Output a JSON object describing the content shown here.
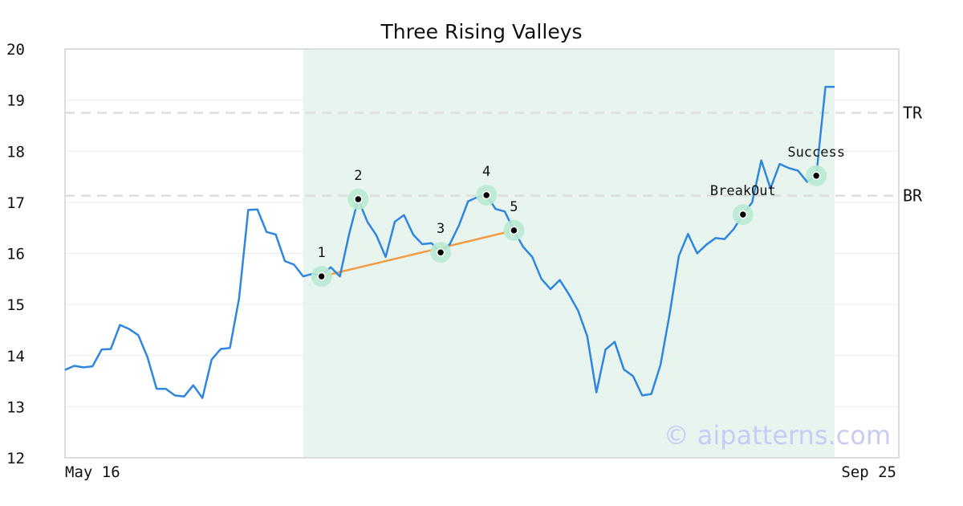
{
  "chart_data": {
    "type": "line",
    "title": "Three Rising Valleys",
    "xlabel": "",
    "ylabel": "",
    "ylim": [
      12,
      20
    ],
    "yticks": [
      12,
      13,
      14,
      15,
      16,
      17,
      18,
      19,
      20
    ],
    "x_start_label": "May 16",
    "x_end_label": "Sep 25",
    "grid": true,
    "colors": {
      "price": "#2e86de",
      "trendline": "#f39c45",
      "highlight": "#e8f5ef",
      "marker_halo": "#b9ead1",
      "ref_line": "#dddddd",
      "watermark": "#c9cbf7"
    },
    "series": [
      {
        "values": [
          13.72,
          13.8,
          13.77,
          13.79,
          14.12,
          14.13,
          14.6,
          14.52,
          14.4,
          13.97,
          13.35,
          13.35,
          13.22,
          13.2,
          13.42,
          13.17,
          13.92,
          14.13,
          14.15,
          15.12,
          16.85,
          16.86,
          16.42,
          16.37,
          15.85,
          15.78,
          15.55,
          15.6,
          15.55,
          15.73,
          15.55,
          16.37,
          17.06,
          16.62,
          16.35,
          15.93,
          16.62,
          16.75,
          16.37,
          16.18,
          16.2,
          16.02,
          16.18,
          16.55,
          17.02,
          17.1,
          17.14,
          16.87,
          16.82,
          16.45,
          16.13,
          15.93,
          15.5,
          15.3,
          15.48,
          15.2,
          14.88,
          14.38,
          13.28,
          14.12,
          14.27,
          13.73,
          13.6,
          13.22,
          13.25,
          13.82,
          14.82,
          15.95,
          16.38,
          16.0,
          16.17,
          16.3,
          16.28,
          16.48,
          16.76,
          17.0,
          17.82,
          17.27,
          17.75,
          17.67,
          17.62,
          17.4,
          17.52,
          19.26,
          19.26
        ]
      }
    ],
    "highlight_range": [
      26,
      84
    ],
    "reference_lines": [
      {
        "label": "TR",
        "value": 18.75
      },
      {
        "label": "BR",
        "value": 17.13
      }
    ],
    "points": [
      {
        "label": "1",
        "index": 28,
        "value": 15.55
      },
      {
        "label": "2",
        "index": 32,
        "value": 17.06
      },
      {
        "label": "3",
        "index": 41,
        "value": 16.02
      },
      {
        "label": "4",
        "index": 46,
        "value": 17.14
      },
      {
        "label": "5",
        "index": 49,
        "value": 16.45
      },
      {
        "label": "BreakOut",
        "index": 74,
        "value": 16.76
      },
      {
        "label": "Success",
        "index": 82,
        "value": 17.52
      }
    ],
    "trendline": {
      "from_point": "1",
      "to_point": "5"
    },
    "watermark": "© aipatterns.com"
  }
}
